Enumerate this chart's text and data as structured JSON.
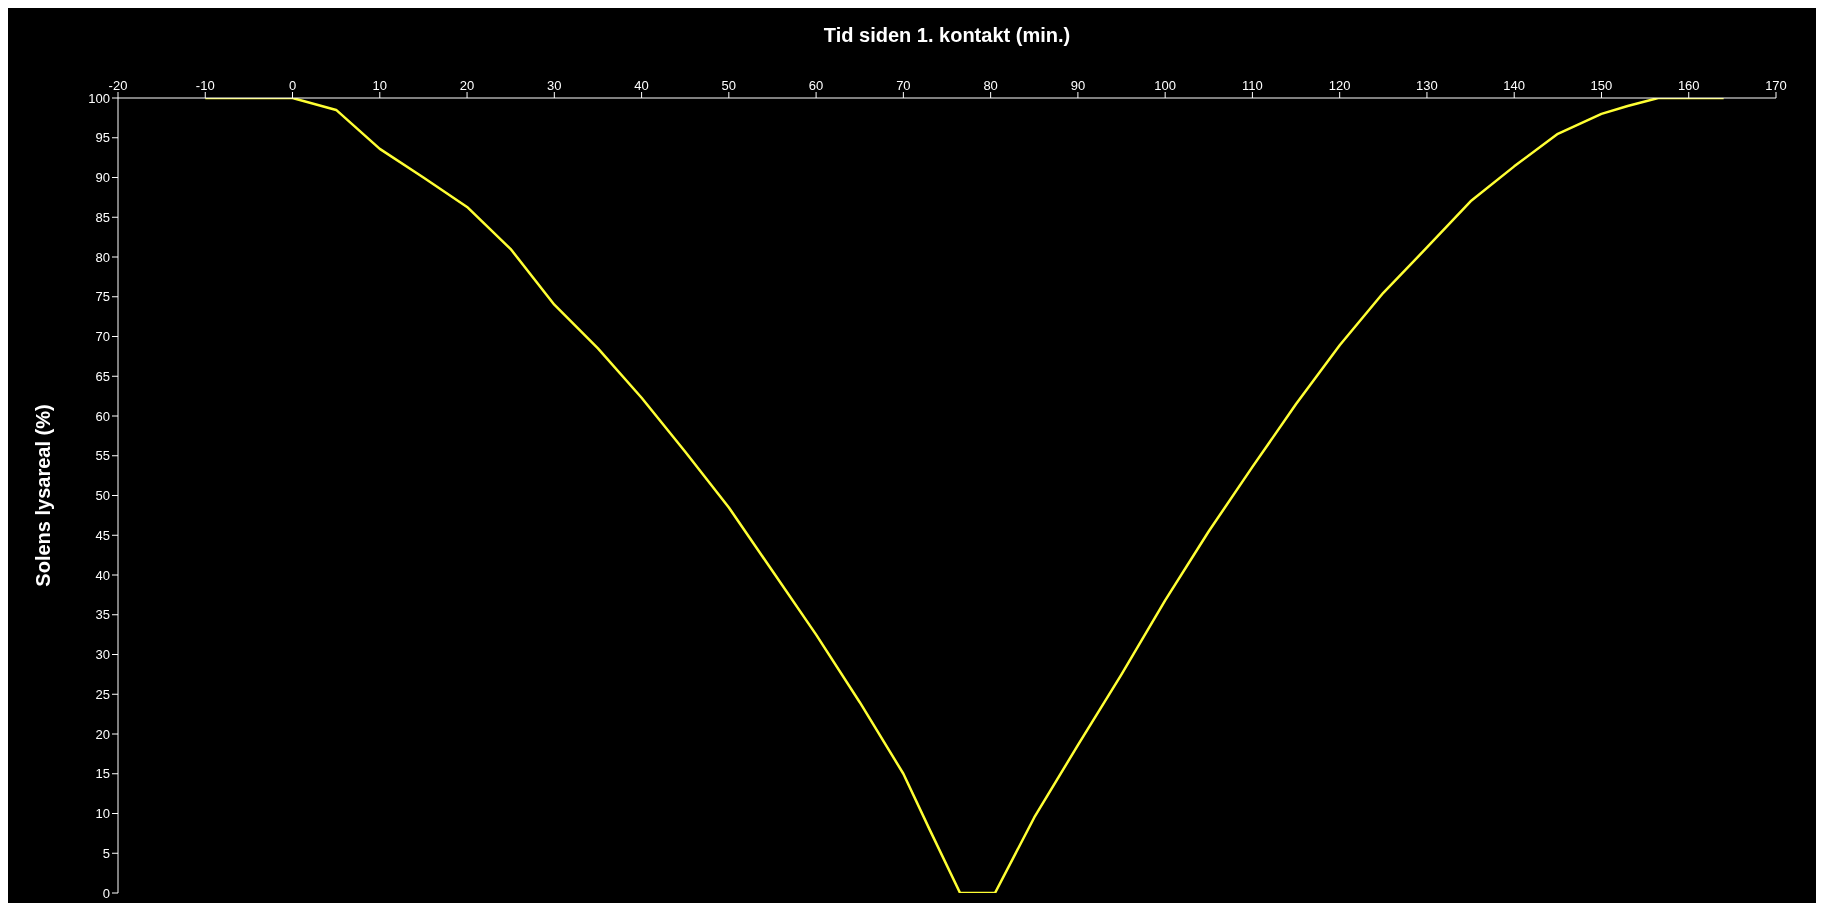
{
  "chart_data": {
    "type": "line",
    "xlabel": "Tid siden 1. kontakt (min.)",
    "ylabel": "Solens lysareal (%)",
    "x": [
      -10,
      0,
      5,
      10,
      15,
      20,
      25,
      30,
      35,
      40,
      45,
      50,
      55,
      60,
      65,
      70,
      73,
      76.5,
      80.5,
      85,
      90,
      95,
      100,
      105,
      110,
      115,
      120,
      125,
      130,
      135,
      140,
      145,
      150,
      153,
      156.5,
      164
    ],
    "series": [
      {
        "color": "#ffff33",
        "values": [
          100,
          100,
          98.5,
          93.6,
          90,
          86.3,
          81,
          74,
          68.5,
          62.3,
          55.5,
          48.5,
          40.5,
          32.5,
          24,
          15,
          8,
          0,
          0,
          9.5,
          18.6,
          27.5,
          36.8,
          45.5,
          53.6,
          61.5,
          68.9,
          75.5,
          81.2,
          87,
          91.4,
          95.5,
          98,
          99,
          100,
          100
        ]
      }
    ],
    "xlim": [
      -20,
      170
    ],
    "xticks": [
      -20,
      -10,
      0,
      10,
      20,
      30,
      40,
      50,
      60,
      70,
      80,
      90,
      100,
      110,
      120,
      130,
      140,
      150,
      160,
      170
    ],
    "ylim": [
      0,
      100
    ],
    "yticks": [
      0,
      5,
      10,
      15,
      20,
      25,
      30,
      35,
      40,
      45,
      50,
      55,
      60,
      65,
      70,
      75,
      80,
      85,
      90,
      95,
      100
    ],
    "marker": "none",
    "line_style": "solid"
  }
}
